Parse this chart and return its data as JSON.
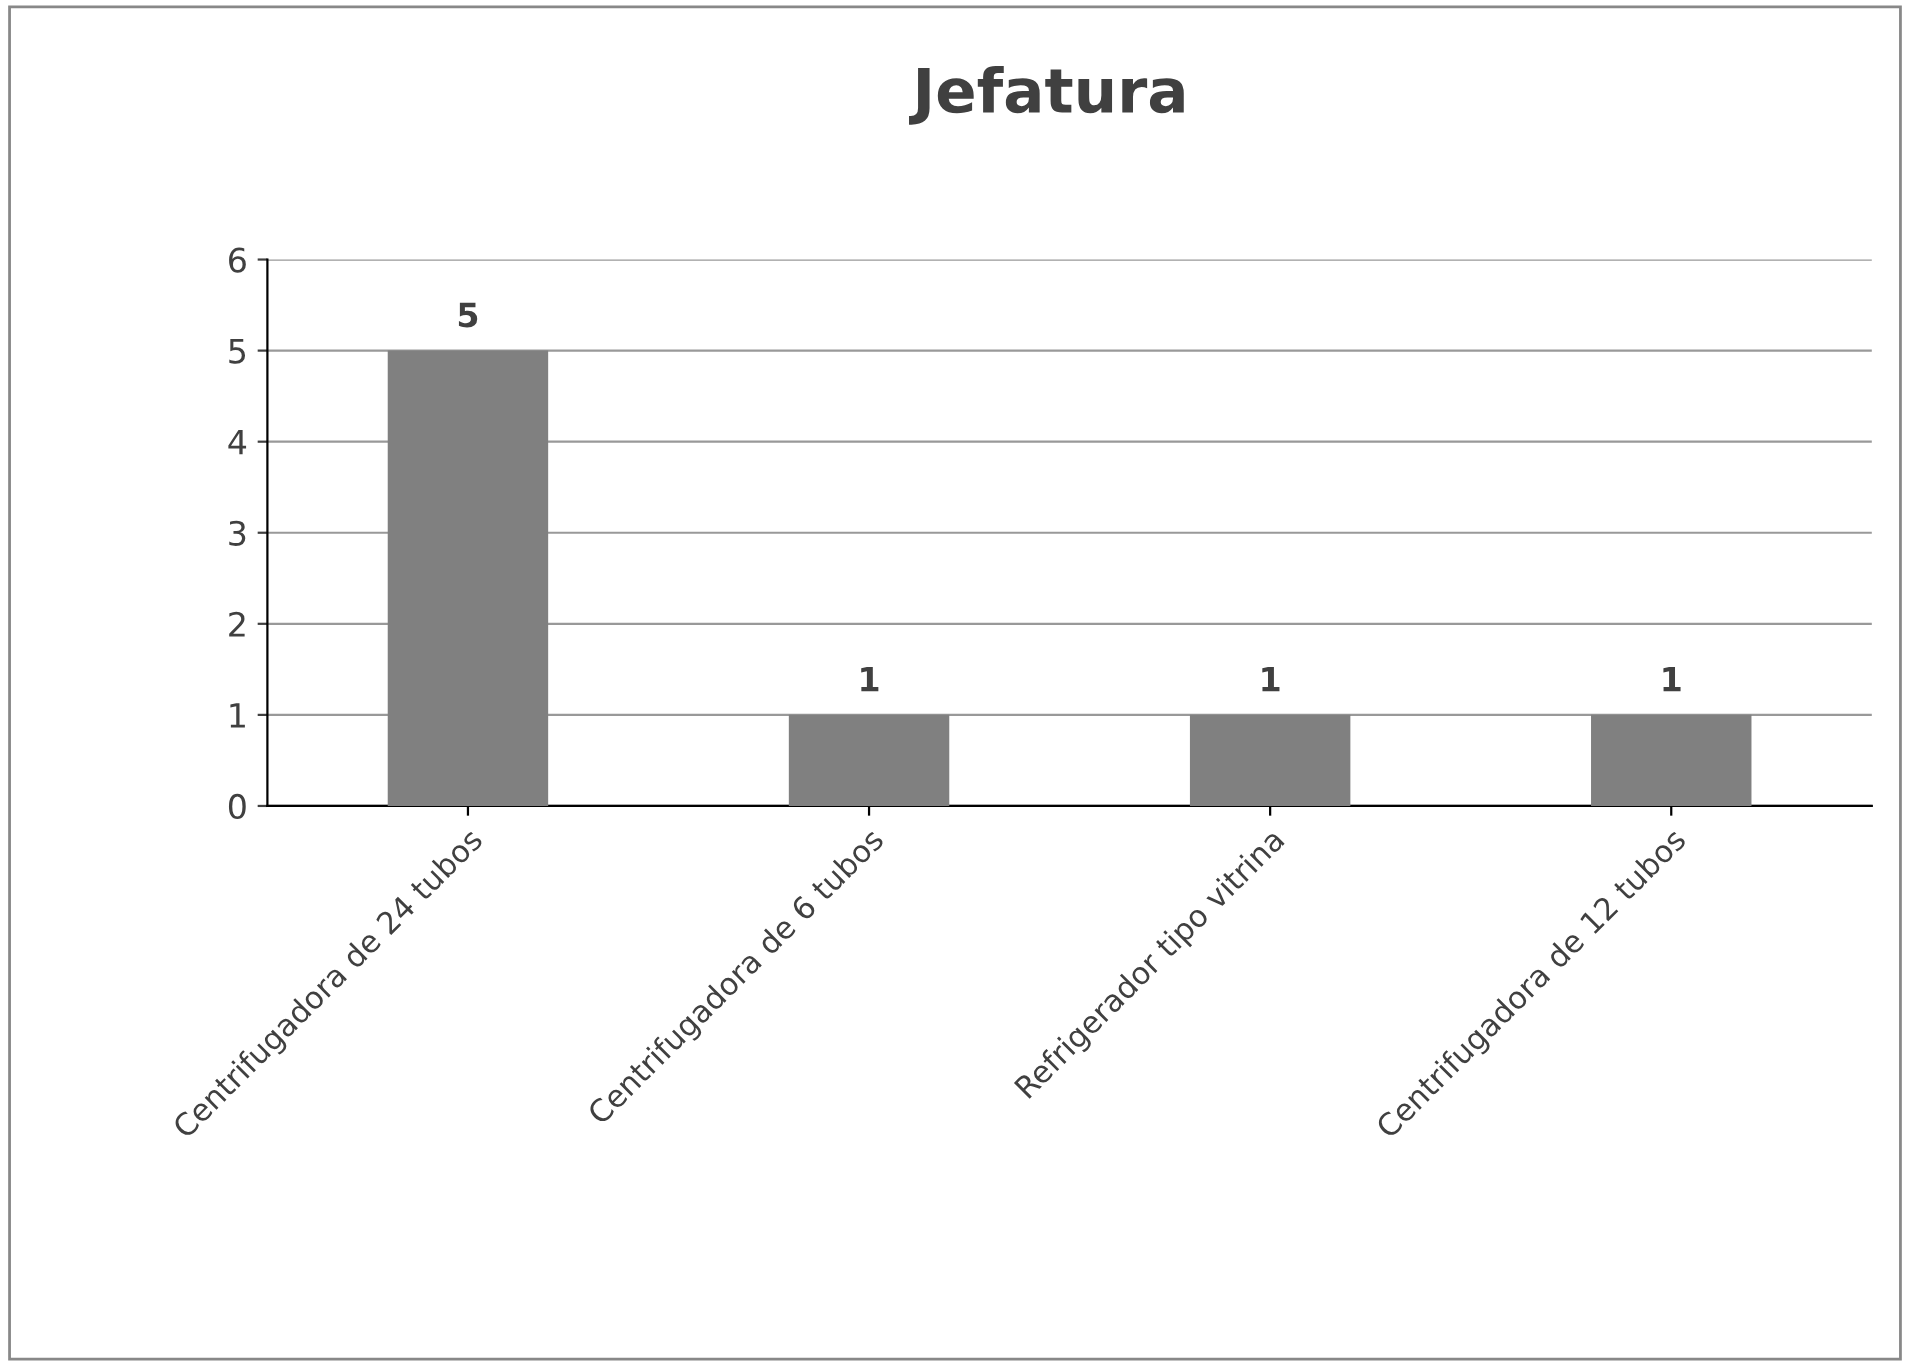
{
  "chart_data": {
    "type": "bar",
    "title": "Jefatura",
    "categories": [
      "Centrifugadora de 24 tubos",
      "Centrifugadora de 6 tubos",
      "Refrigerador tipo vitrina",
      "Centrifugadora de 12 tubos"
    ],
    "values": [
      5,
      1,
      1,
      1
    ],
    "color": "#808080",
    "ylim": [
      0,
      6
    ],
    "yticks": [
      0,
      1,
      2,
      3,
      4,
      5,
      6
    ],
    "grid": "y",
    "data_labels": true,
    "legend": false
  }
}
